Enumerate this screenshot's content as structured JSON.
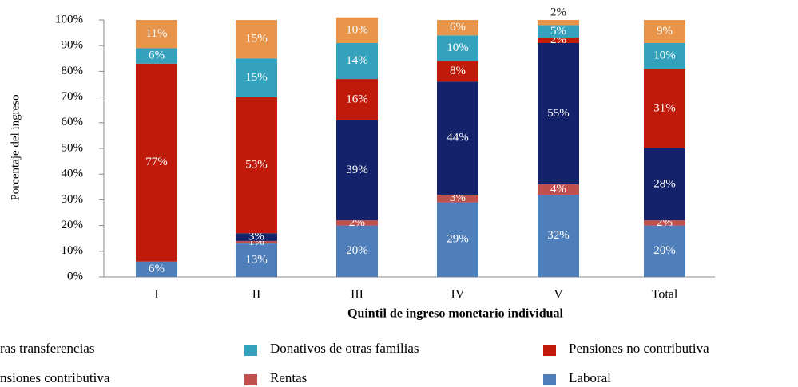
{
  "chart_data": {
    "type": "stacked_bar",
    "xlabel": "Quintil de ingreso monetario individual",
    "ylabel": "Porcentaje del ingreso",
    "categories": [
      "I",
      "II",
      "III",
      "IV",
      "V",
      "Total"
    ],
    "ylim": [
      0,
      100
    ],
    "yticks": [
      {
        "value": 0,
        "label": "0%"
      },
      {
        "value": 10,
        "label": "10%"
      },
      {
        "value": 20,
        "label": "20%"
      },
      {
        "value": 30,
        "label": "30%"
      },
      {
        "value": 40,
        "label": "40%"
      },
      {
        "value": 50,
        "label": "50%"
      },
      {
        "value": 60,
        "label": "60%"
      },
      {
        "value": 70,
        "label": "70%"
      },
      {
        "value": 80,
        "label": "80%"
      },
      {
        "value": 90,
        "label": "90%"
      },
      {
        "value": 100,
        "label": "100%"
      }
    ],
    "series": [
      {
        "name": "Laboral",
        "color": "#4f7fbb",
        "values": [
          6,
          13,
          20,
          29,
          32,
          20
        ],
        "value_labels": [
          "6%",
          "13%",
          "20%",
          "29%",
          "32%",
          "20%"
        ]
      },
      {
        "name": "Rentas",
        "color": "#c0504d",
        "values": [
          0,
          1,
          2,
          3,
          4,
          2
        ],
        "value_labels": [
          null,
          "1%",
          "2%",
          "3%",
          "4%",
          "2%"
        ]
      },
      {
        "name": "nsiones contributiva",
        "color": "#13226a",
        "values": [
          0,
          3,
          39,
          44,
          55,
          28
        ],
        "value_labels": [
          null,
          "3%",
          "39%",
          "44%",
          "55%",
          "28%"
        ]
      },
      {
        "name": "Pensiones no contributiva",
        "color": "#c01a0a",
        "values": [
          77,
          53,
          16,
          8,
          2,
          31
        ],
        "value_labels": [
          "77%",
          "53%",
          "16%",
          "8%",
          "2%",
          "31%"
        ]
      },
      {
        "name": "Donativos de otras familias",
        "color": "#34a2bd",
        "values": [
          6,
          15,
          14,
          10,
          5,
          10
        ],
        "value_labels": [
          "6%",
          "15%",
          "14%",
          "10%",
          "5%",
          "10%"
        ]
      },
      {
        "name": "ras transferencias",
        "color": "#e8944a",
        "values": [
          11,
          15,
          10,
          6,
          2,
          9
        ],
        "value_labels": [
          "11%",
          "15%",
          "10%",
          "6%",
          "2%",
          "9%"
        ]
      }
    ]
  }
}
